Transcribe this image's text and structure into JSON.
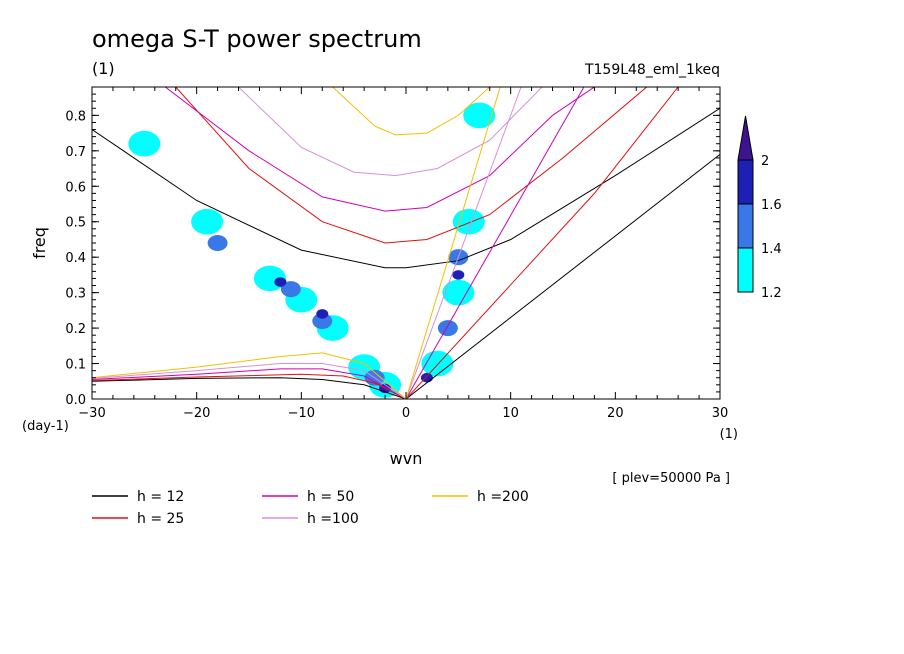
{
  "chart_data": {
    "type": "heatmap",
    "title": "omega S-T power spectrum",
    "subtitle_left": "(1)",
    "subtitle_right": "T159L48_eml_1keq",
    "xlabel": "wvn",
    "x_unit": "(1)",
    "ylabel": "freq",
    "y_unit": "(day-1)",
    "xlim": [
      -30,
      30
    ],
    "ylim": [
      0,
      0.88
    ],
    "x_ticks": [
      -30,
      -20,
      -10,
      0,
      10,
      20,
      30
    ],
    "y_ticks": [
      0.0,
      0.1,
      0.2,
      0.3,
      0.4,
      0.5,
      0.6,
      0.7,
      0.8
    ],
    "annotation": "[ plev=50000 Pa ]",
    "colorbar": {
      "levels": [
        1.2,
        1.4,
        1.6,
        2
      ],
      "colors": [
        "#00ffff",
        "#3a78e8",
        "#1c20b4",
        "#3d1390"
      ]
    },
    "legend": [
      {
        "label": "h = 12",
        "color": "#000000"
      },
      {
        "label": "h = 25",
        "color": "#e01010"
      },
      {
        "label": "h = 50",
        "color": "#d000b0"
      },
      {
        "label": "h =100",
        "color": "#d890d8"
      },
      {
        "label": "h =200",
        "color": "#f0c000"
      }
    ],
    "series": [
      {
        "name": "h = 12",
        "color": "#000000",
        "kelvin": [
          [
            0,
            0
          ],
          [
            30,
            0.69
          ]
        ],
        "er": [
          [
            -30,
            0.05
          ],
          [
            -20,
            0.058
          ],
          [
            -12,
            0.06
          ],
          [
            -8,
            0.055
          ],
          [
            -4,
            0.04
          ],
          [
            0,
            0
          ]
        ],
        "ig": [
          [
            -30,
            0.76
          ],
          [
            -20,
            0.56
          ],
          [
            -10,
            0.42
          ],
          [
            -2,
            0.37
          ],
          [
            0,
            0.37
          ],
          [
            5,
            0.39
          ],
          [
            10,
            0.45
          ],
          [
            20,
            0.63
          ],
          [
            30,
            0.82
          ]
        ]
      },
      {
        "name": "h = 25",
        "color": "#e01010",
        "kelvin": [
          [
            0,
            0
          ],
          [
            18,
            0.58
          ],
          [
            26,
            0.88
          ]
        ],
        "er": [
          [
            -30,
            0.052
          ],
          [
            -20,
            0.062
          ],
          [
            -10,
            0.07
          ],
          [
            -6,
            0.065
          ],
          [
            -3,
            0.045
          ],
          [
            0,
            0
          ]
        ],
        "ig": [
          [
            -30,
            1.05
          ],
          [
            -22,
            0.88
          ],
          [
            -15,
            0.65
          ],
          [
            -8,
            0.5
          ],
          [
            -2,
            0.44
          ],
          [
            2,
            0.45
          ],
          [
            8,
            0.52
          ],
          [
            15,
            0.68
          ],
          [
            23,
            0.88
          ]
        ]
      },
      {
        "name": "h = 50",
        "color": "#d000b0",
        "kelvin": [
          [
            0,
            0
          ],
          [
            17,
            0.88
          ]
        ],
        "er": [
          [
            -30,
            0.055
          ],
          [
            -20,
            0.07
          ],
          [
            -12,
            0.085
          ],
          [
            -8,
            0.085
          ],
          [
            -4,
            0.065
          ],
          [
            0,
            0
          ]
        ],
        "ig": [
          [
            -23,
            0.88
          ],
          [
            -15,
            0.7
          ],
          [
            -8,
            0.57
          ],
          [
            -2,
            0.53
          ],
          [
            2,
            0.54
          ],
          [
            8,
            0.63
          ],
          [
            14,
            0.8
          ],
          [
            18,
            0.88
          ]
        ]
      },
      {
        "name": "h =100",
        "color": "#d890d8",
        "kelvin": [
          [
            0,
            0
          ],
          [
            11,
            0.88
          ]
        ],
        "er": [
          [
            -30,
            0.058
          ],
          [
            -20,
            0.08
          ],
          [
            -12,
            0.1
          ],
          [
            -8,
            0.1
          ],
          [
            -4,
            0.08
          ],
          [
            0,
            0
          ]
        ],
        "ig": [
          [
            -16,
            0.88
          ],
          [
            -10,
            0.71
          ],
          [
            -5,
            0.64
          ],
          [
            -1,
            0.63
          ],
          [
            3,
            0.65
          ],
          [
            8,
            0.73
          ],
          [
            13,
            0.88
          ]
        ]
      },
      {
        "name": "h =200",
        "color": "#f0c000",
        "kelvin": [
          [
            0,
            0
          ],
          [
            9,
            0.88
          ]
        ],
        "er": [
          [
            -30,
            0.06
          ],
          [
            -20,
            0.09
          ],
          [
            -12,
            0.12
          ],
          [
            -8,
            0.13
          ],
          [
            -4,
            0.1
          ],
          [
            0,
            0
          ]
        ],
        "ig": [
          [
            -7,
            0.88
          ],
          [
            -3,
            0.77
          ],
          [
            -1,
            0.745
          ],
          [
            2,
            0.75
          ],
          [
            5,
            0.8
          ],
          [
            8,
            0.88
          ]
        ]
      }
    ],
    "power_blobs": [
      {
        "x": -19,
        "y": 0.5,
        "level": 0
      },
      {
        "x": -13,
        "y": 0.34,
        "level": 0
      },
      {
        "x": -10,
        "y": 0.28,
        "level": 0
      },
      {
        "x": -7,
        "y": 0.2,
        "level": 0
      },
      {
        "x": -4,
        "y": 0.09,
        "level": 0
      },
      {
        "x": -2,
        "y": 0.04,
        "level": 0
      },
      {
        "x": 3,
        "y": 0.1,
        "level": 0
      },
      {
        "x": 5,
        "y": 0.3,
        "level": 0
      },
      {
        "x": 6,
        "y": 0.5,
        "level": 0
      },
      {
        "x": 7,
        "y": 0.8,
        "level": 0
      },
      {
        "x": -25,
        "y": 0.72,
        "level": 0
      },
      {
        "x": -18,
        "y": 0.44,
        "level": 1
      },
      {
        "x": -11,
        "y": 0.31,
        "level": 1
      },
      {
        "x": -8,
        "y": 0.22,
        "level": 1
      },
      {
        "x": -3,
        "y": 0.06,
        "level": 1
      },
      {
        "x": 4,
        "y": 0.2,
        "level": 1
      },
      {
        "x": 5,
        "y": 0.4,
        "level": 1
      },
      {
        "x": -12,
        "y": 0.33,
        "level": 2
      },
      {
        "x": -8,
        "y": 0.24,
        "level": 2
      },
      {
        "x": -2,
        "y": 0.03,
        "level": 2
      },
      {
        "x": 2,
        "y": 0.06,
        "level": 2
      },
      {
        "x": 5,
        "y": 0.35,
        "level": 2
      }
    ]
  }
}
